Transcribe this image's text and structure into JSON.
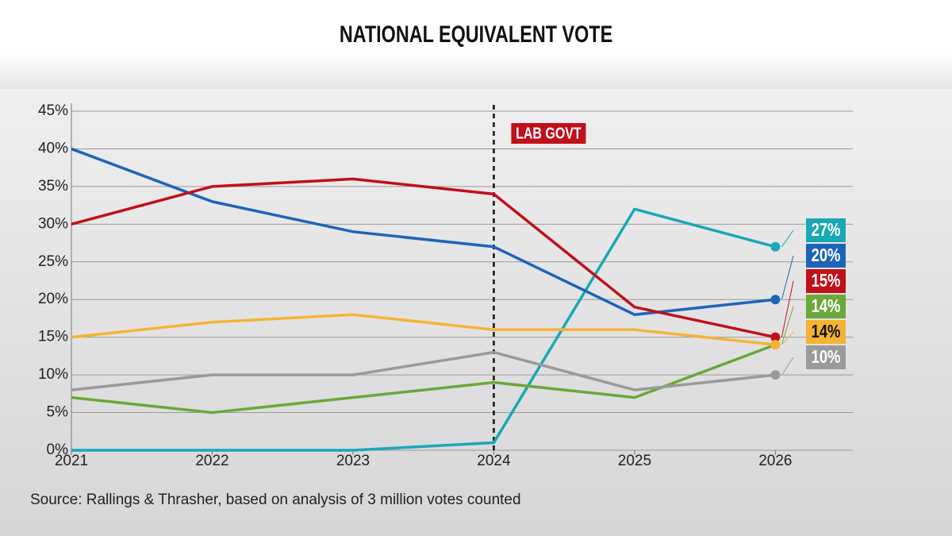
{
  "chart_data": {
    "type": "line",
    "title": "NATIONAL EQUIVALENT VOTE",
    "source": "Source: Rallings & Thrasher, based on analysis of 3 million votes counted",
    "x": [
      2021,
      2022,
      2023,
      2024,
      2025,
      2026
    ],
    "xlim": [
      2021,
      2026.55
    ],
    "xticks": [
      2021,
      2022,
      2023,
      2024,
      2025,
      2026
    ],
    "ylim": [
      0,
      45
    ],
    "yticks": [
      {
        "value": 0,
        "label": "0%"
      },
      {
        "value": 5,
        "label": "5%"
      },
      {
        "value": 10,
        "label": "10%"
      },
      {
        "value": 15,
        "label": "15%"
      },
      {
        "value": 20,
        "label": "20%"
      },
      {
        "value": 25,
        "label": "25%"
      },
      {
        "value": 30,
        "label": "30%"
      },
      {
        "value": 35,
        "label": "35%"
      },
      {
        "value": 40,
        "label": "40%"
      },
      {
        "value": 45,
        "label": "45%"
      }
    ],
    "grid": true,
    "annotation": {
      "x": 2024,
      "text": "LAB GOVT",
      "color": "#c0101a"
    },
    "series": [
      {
        "color": "#1aa8b5",
        "values": [
          0,
          0,
          0,
          1,
          32,
          27
        ],
        "value_labels": [
          null,
          null,
          null,
          null,
          null,
          "27%"
        ]
      },
      {
        "color": "#1d64b8",
        "values": [
          40,
          33,
          29,
          27,
          18,
          20
        ],
        "value_labels": [
          null,
          null,
          null,
          null,
          null,
          "20%"
        ]
      },
      {
        "color": "#c0101a",
        "values": [
          30,
          35,
          36,
          34,
          19,
          15
        ],
        "value_labels": [
          null,
          null,
          null,
          null,
          null,
          "15%"
        ]
      },
      {
        "color": "#6aa83a",
        "values": [
          7,
          5,
          7,
          9,
          7,
          14
        ],
        "value_labels": [
          null,
          null,
          null,
          null,
          null,
          "14%"
        ]
      },
      {
        "color": "#f5b335",
        "values": [
          15,
          17,
          18,
          16,
          16,
          14
        ],
        "value_labels": [
          null,
          null,
          null,
          null,
          null,
          "14%"
        ]
      },
      {
        "color": "#9a9a9a",
        "values": [
          8,
          10,
          10,
          13,
          8,
          10
        ],
        "value_labels": [
          null,
          null,
          null,
          null,
          null,
          "10%"
        ]
      }
    ]
  }
}
